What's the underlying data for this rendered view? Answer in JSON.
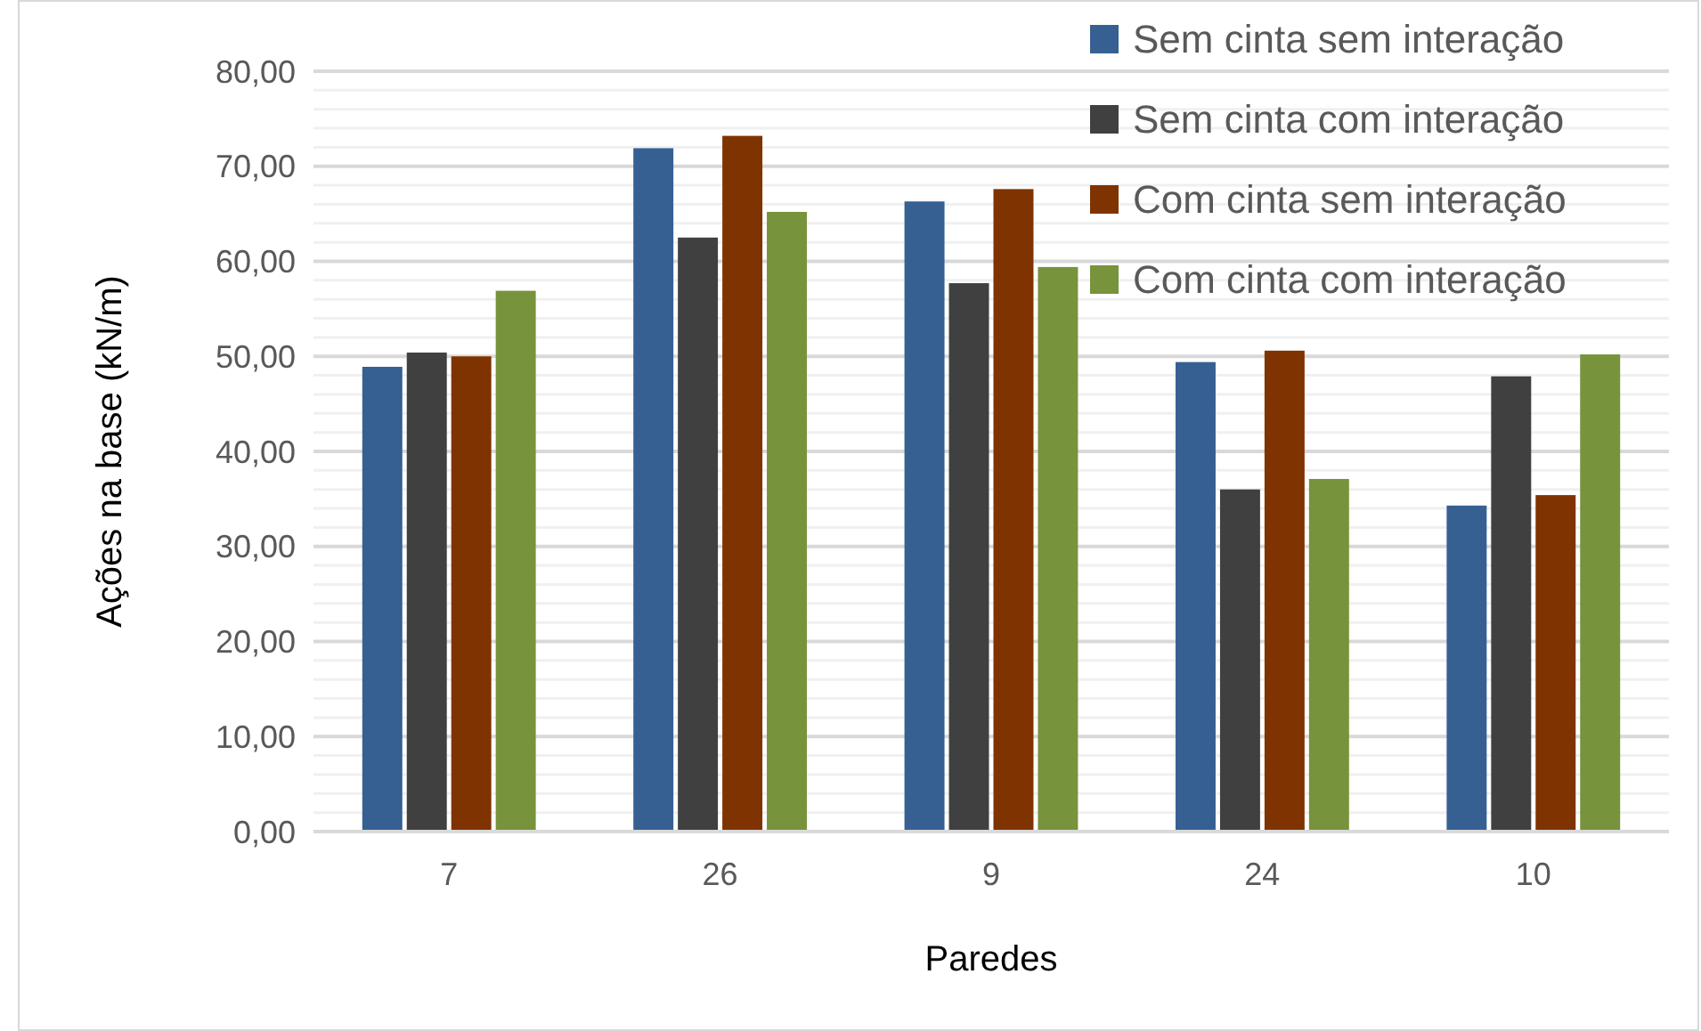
{
  "chart_data": {
    "type": "bar",
    "xlabel": "Paredes",
    "ylabel": "Ações na base (kN/m)",
    "categories": [
      "7",
      "26",
      "9",
      "24",
      "10"
    ],
    "series": [
      {
        "name": "Sem cinta sem interação",
        "color": "#366092",
        "values": [
          48.9,
          71.9,
          66.3,
          49.4,
          34.3
        ]
      },
      {
        "name": "Sem cinta com interação",
        "color": "#404040",
        "values": [
          50.4,
          62.5,
          57.7,
          36.0,
          47.9
        ]
      },
      {
        "name": "Com cinta sem interação",
        "color": "#7f3300",
        "values": [
          50.0,
          73.2,
          67.6,
          50.6,
          35.4
        ]
      },
      {
        "name": "Com cinta com interação",
        "color": "#77933c",
        "values": [
          56.9,
          65.2,
          59.4,
          37.1,
          50.2
        ]
      }
    ],
    "ylim": [
      0,
      80
    ],
    "yticks": [
      {
        "value": 0,
        "label": "0,00"
      },
      {
        "value": 2,
        "label": null
      },
      {
        "value": 4,
        "label": null
      },
      {
        "value": 6,
        "label": null
      },
      {
        "value": 8,
        "label": null
      },
      {
        "value": 10,
        "label": "10,00"
      },
      {
        "value": 12,
        "label": null
      },
      {
        "value": 14,
        "label": null
      },
      {
        "value": 16,
        "label": null
      },
      {
        "value": 18,
        "label": null
      },
      {
        "value": 20,
        "label": "20,00"
      },
      {
        "value": 22,
        "label": null
      },
      {
        "value": 24,
        "label": null
      },
      {
        "value": 26,
        "label": null
      },
      {
        "value": 28,
        "label": null
      },
      {
        "value": 30,
        "label": "30,00"
      },
      {
        "value": 32,
        "label": null
      },
      {
        "value": 34,
        "label": null
      },
      {
        "value": 36,
        "label": null
      },
      {
        "value": 38,
        "label": null
      },
      {
        "value": 40,
        "label": "40,00"
      },
      {
        "value": 42,
        "label": null
      },
      {
        "value": 44,
        "label": null
      },
      {
        "value": 46,
        "label": null
      },
      {
        "value": 48,
        "label": null
      },
      {
        "value": 50,
        "label": "50,00"
      },
      {
        "value": 52,
        "label": null
      },
      {
        "value": 54,
        "label": null
      },
      {
        "value": 56,
        "label": null
      },
      {
        "value": 58,
        "label": null
      },
      {
        "value": 60,
        "label": "60,00"
      },
      {
        "value": 62,
        "label": null
      },
      {
        "value": 64,
        "label": null
      },
      {
        "value": 66,
        "label": null
      },
      {
        "value": 68,
        "label": null
      },
      {
        "value": 70,
        "label": "70,00"
      },
      {
        "value": 72,
        "label": null
      },
      {
        "value": 74,
        "label": null
      },
      {
        "value": 76,
        "label": null
      },
      {
        "value": 78,
        "label": null
      },
      {
        "value": 80,
        "label": "80,00"
      }
    ],
    "grid": "y",
    "legend": "top right"
  }
}
